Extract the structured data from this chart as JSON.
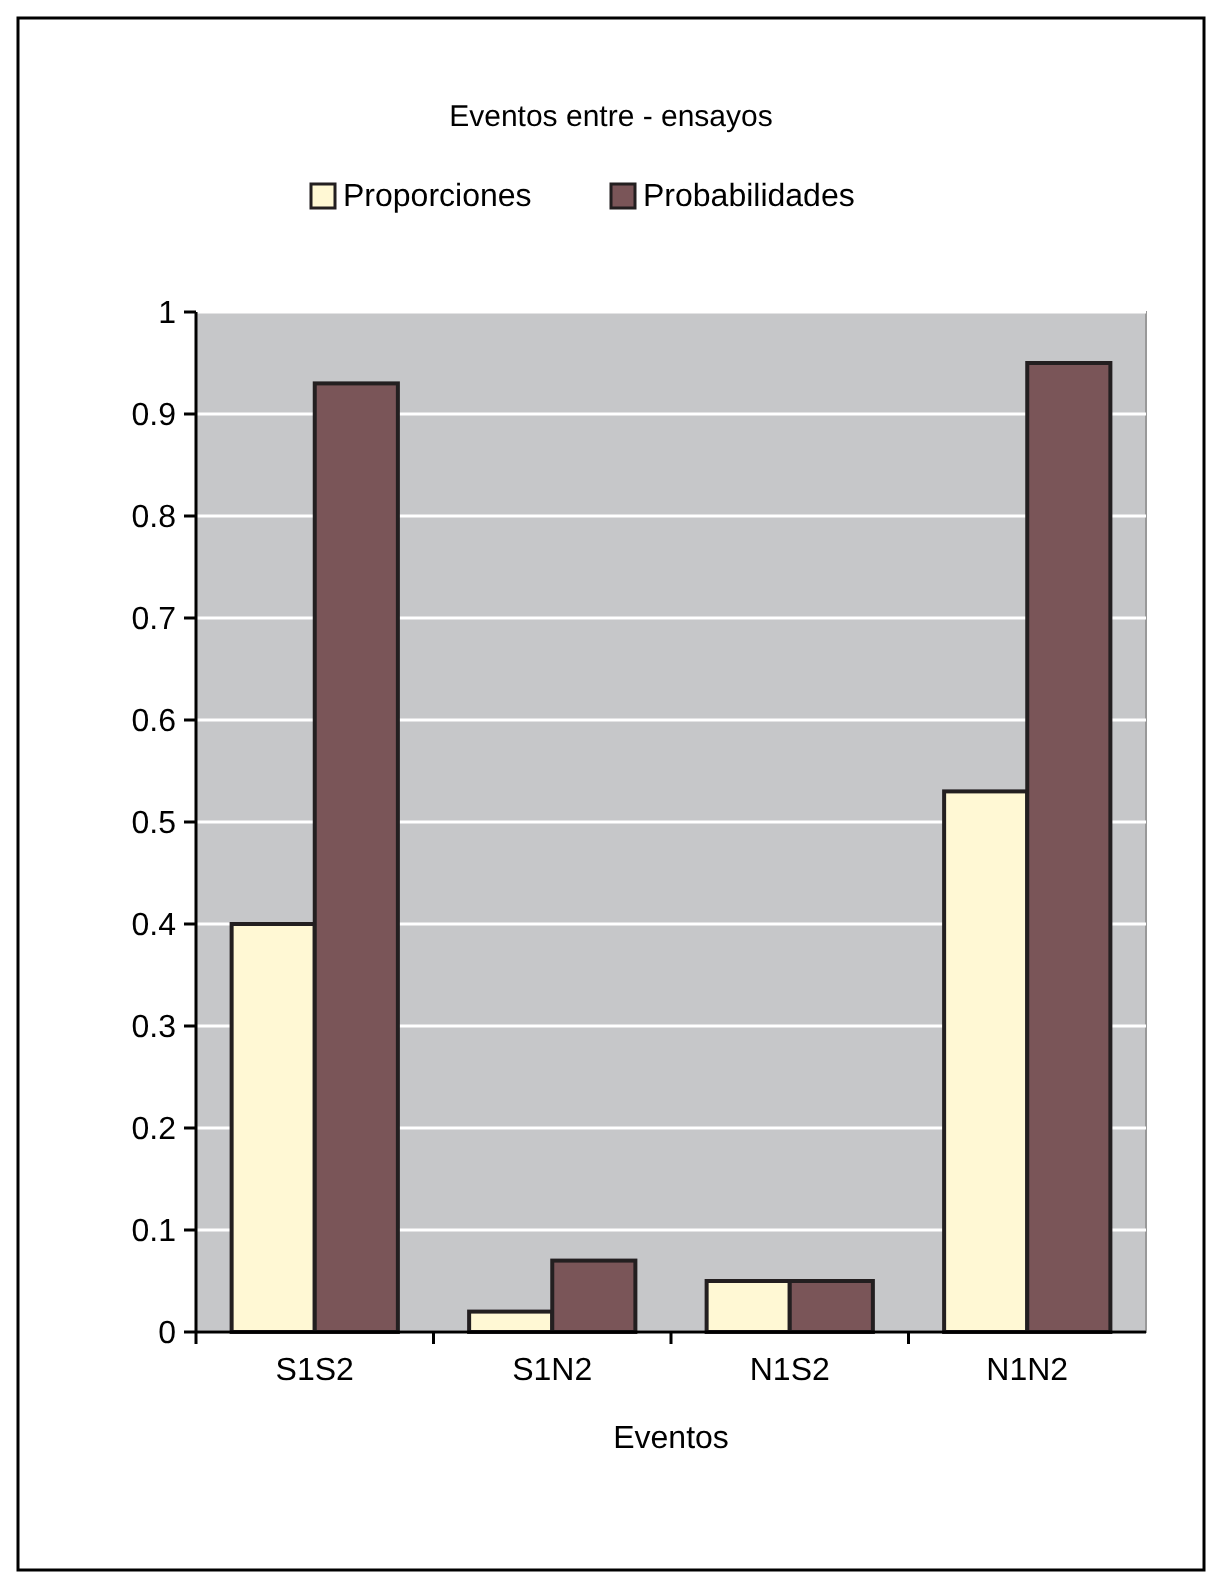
{
  "chart_data": {
    "type": "bar",
    "title": "Eventos entre - ensayos",
    "xlabel": "Eventos",
    "categories": [
      "S1S2",
      "S1N2",
      "N1S2",
      "N1N2"
    ],
    "series": [
      {
        "name": "Proporciones",
        "color": "#fff8d4",
        "values": [
          0.4,
          0.02,
          0.05,
          0.53
        ]
      },
      {
        "name": "Probabilidades",
        "color": "#7a5558",
        "values": [
          0.93,
          0.07,
          0.05,
          0.95
        ]
      }
    ],
    "ylim": [
      0,
      1
    ],
    "yticks": [
      0,
      0.1,
      0.2,
      0.3,
      0.4,
      0.5,
      0.6,
      0.7,
      0.8,
      0.9,
      1
    ],
    "grid": "y",
    "legend": "top"
  }
}
